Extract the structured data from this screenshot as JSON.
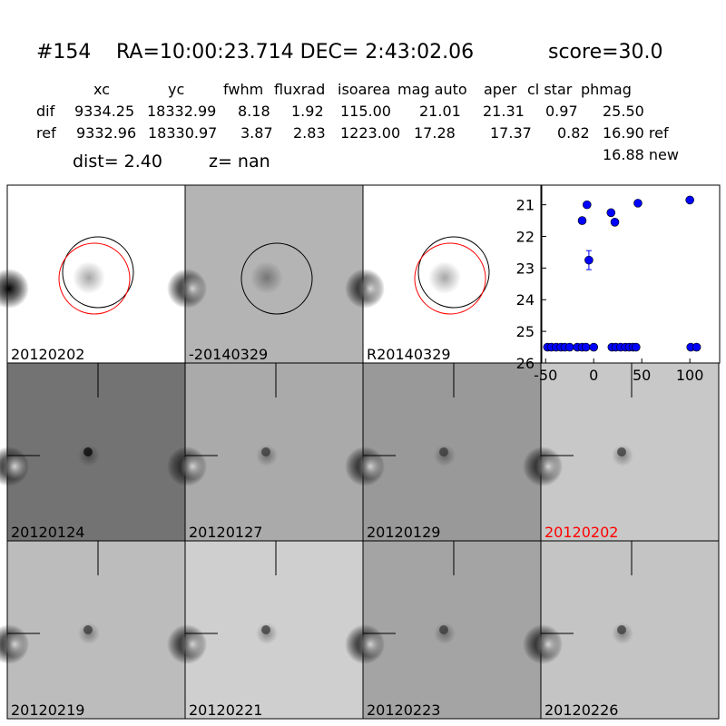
{
  "header": {
    "id": "#154",
    "coords": "RA=10:00:23.714 DEC= 2:43:02.06",
    "score": "score=30.0"
  },
  "table": {
    "columns": [
      "xc",
      "yc",
      "fwhm",
      "fluxrad",
      "isoarea",
      "mag auto",
      "aper",
      "cl star",
      "phmag"
    ],
    "rows": [
      [
        "dif",
        "9334.25",
        "18332.99",
        "8.18",
        "1.92",
        "115.00",
        "21.01",
        "21.31",
        "0.97",
        "25.50"
      ],
      [
        "ref",
        "9332.96",
        "18330.97",
        "3.87",
        "2.83",
        "1223.00",
        "17.28",
        "17.37",
        "0.82",
        "16.90 ref"
      ]
    ],
    "extra": "16.88 new",
    "dist": "dist=  2.40",
    "z": "z=   nan"
  },
  "panels": [
    {
      "label": "20120202"
    },
    {
      "label": "-20140329"
    },
    {
      "label": "R20140329"
    },
    {
      "label": "20120124"
    },
    {
      "label": "20120127"
    },
    {
      "label": "20120129"
    },
    {
      "label": "20120202",
      "color": "#ff0000"
    },
    {
      "label": "20120219"
    },
    {
      "label": "20120221"
    },
    {
      "label": "20120223"
    },
    {
      "label": "20120226"
    }
  ],
  "chart_data": {
    "type": "scatter",
    "xlim": [
      -54,
      131
    ],
    "ylim": [
      26,
      20.38
    ],
    "xticks": [
      -50,
      0,
      50,
      100
    ],
    "yticks": [
      21,
      22,
      23,
      24,
      25,
      26
    ],
    "series": [
      {
        "color": "#0000ff",
        "x": [
          -48,
          -44,
          -39,
          -34,
          -30,
          -25,
          -17,
          -12,
          -8,
          0,
          19,
          23,
          28,
          33,
          37,
          41,
          44,
          101,
          107
        ],
        "values": [
          25.5,
          25.5,
          25.5,
          25.5,
          25.5,
          25.5,
          25.5,
          25.5,
          25.5,
          25.5,
          25.5,
          25.5,
          25.5,
          25.5,
          25.5,
          25.5,
          25.5,
          25.5,
          25.5
        ]
      },
      {
        "color": "#0000ff",
        "x": [
          -12,
          -7,
          -5,
          18,
          22,
          46,
          100
        ],
        "values": [
          21.5,
          21.0,
          22.75,
          21.25,
          21.55,
          20.95,
          20.85
        ],
        "errors": [
          0.05,
          0.05,
          0.3,
          0.05,
          0.05,
          0.05,
          0.05
        ]
      }
    ]
  }
}
